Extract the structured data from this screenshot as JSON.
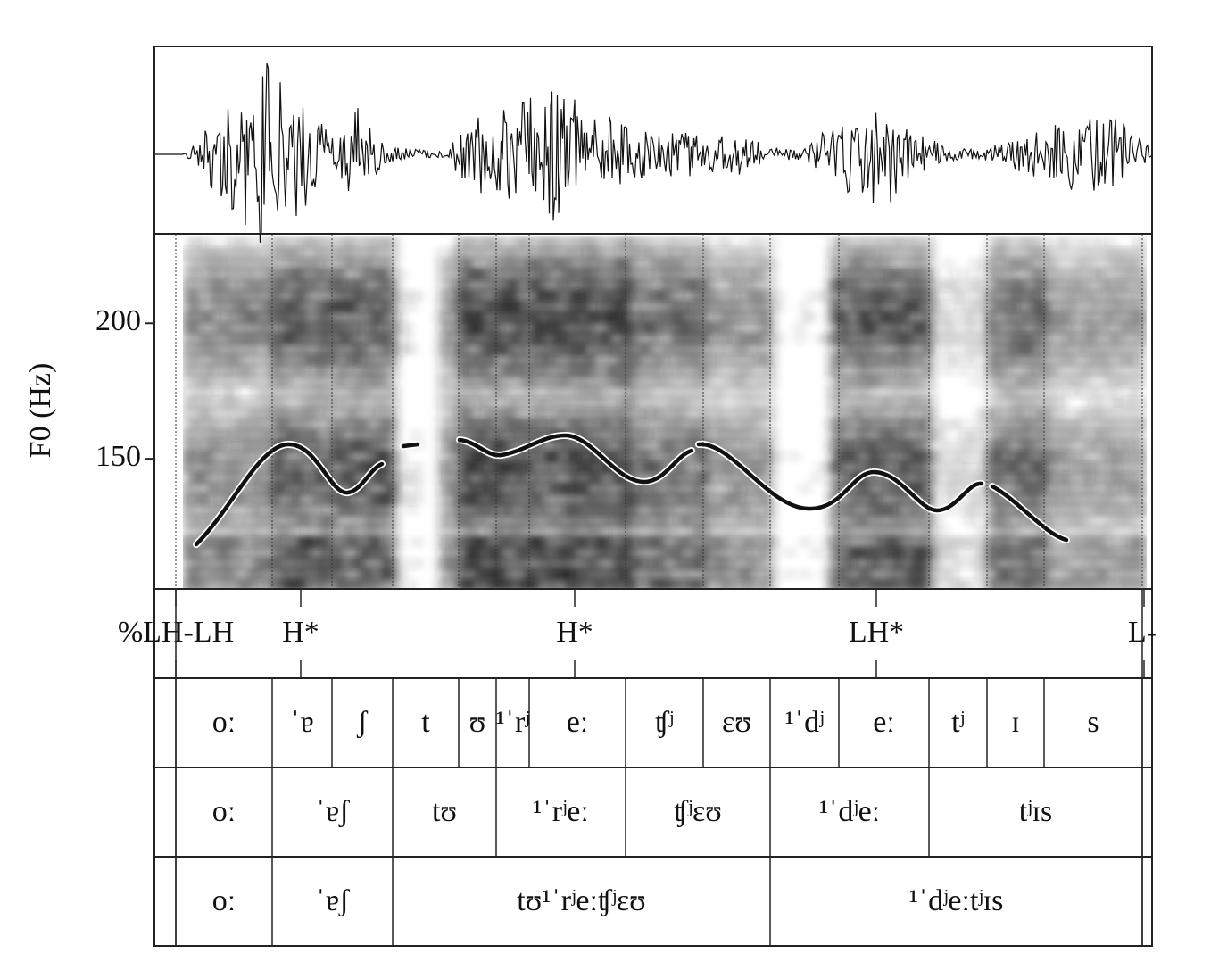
{
  "chart_data": {
    "type": "praat",
    "ylabel": "F0 (Hz)",
    "ylim": [
      102,
      233
    ],
    "yticks": [
      150,
      200
    ],
    "tones": [
      "%LH-LH",
      "H*",
      "H*",
      "LH*",
      "L-"
    ],
    "tiers": [
      [
        "oː",
        "ˈɐ",
        "ʃ",
        "t",
        "ʊ",
        "¹ˈrʲ",
        "eː",
        "ʧʲ",
        "ɛʊ",
        "¹ˈdʲ",
        "eː",
        "tʲ",
        "ɪ",
        "s"
      ],
      [
        "oː",
        "ˈɐʃ",
        "tʊ",
        "¹ˈrʲeː",
        "ʧʲɛʊ",
        "¹ˈdʲeː",
        "tʲɪs"
      ],
      [
        "oː",
        "ˈɐʃ",
        "tʊ¹ˈrʲeːʧʲɛʊ",
        "¹ˈdʲeːtʲɪs"
      ]
    ]
  }
}
